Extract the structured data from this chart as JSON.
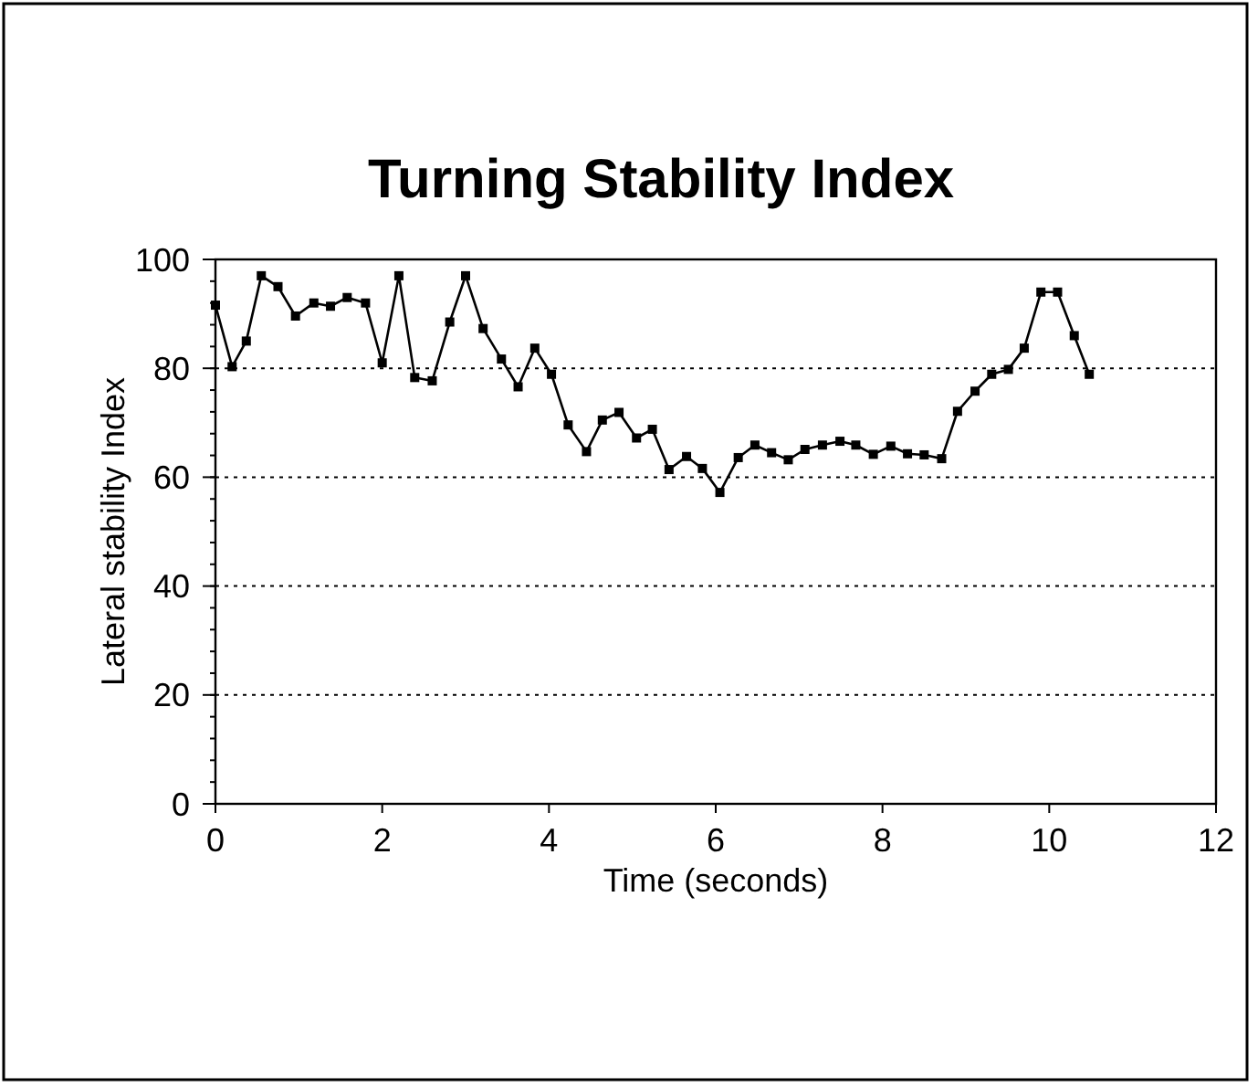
{
  "chart_data": {
    "type": "line",
    "title": "Turning Stability Index",
    "xlabel": "Time  (seconds)",
    "ylabel": "Lateral stability Index",
    "x": [
      0,
      0.2,
      0.37,
      0.55,
      0.75,
      0.96,
      1.18,
      1.38,
      1.58,
      1.8,
      2.0,
      2.2,
      2.39,
      2.6,
      2.81,
      3.0,
      3.21,
      3.43,
      3.63,
      3.83,
      4.03,
      4.23,
      4.45,
      4.64,
      4.84,
      5.05,
      5.24,
      5.44,
      5.65,
      5.84,
      6.05,
      6.27,
      6.47,
      6.67,
      6.87,
      7.07,
      7.28,
      7.49,
      7.68,
      7.89,
      8.1,
      8.3,
      8.5,
      8.71,
      8.9,
      9.11,
      9.31,
      9.51,
      9.7,
      9.9,
      10.1,
      10.3,
      10.48
    ],
    "series": [
      {
        "color": "#000000",
        "values": [
          91.6,
          80.3,
          85,
          97,
          95,
          89.6,
          92,
          91.4,
          93,
          92,
          81,
          97,
          78.3,
          77.7,
          88.5,
          97,
          87.3,
          81.7,
          76.6,
          83.7,
          78.9,
          69.6,
          64.7,
          70.5,
          71.9,
          67.2,
          68.8,
          61.4,
          63.8,
          61.6,
          57.2,
          63.6,
          65.9,
          64.5,
          63.2,
          65.1,
          65.9,
          66.6,
          65.9,
          64.2,
          65.7,
          64.3,
          64.1,
          63.4,
          72.1,
          75.8,
          78.9,
          79.8,
          83.7,
          94,
          94,
          86,
          78.9
        ]
      }
    ],
    "xlim": [
      0,
      12
    ],
    "xticks": [
      0,
      2,
      4,
      6,
      8,
      10,
      12
    ],
    "ylim": [
      0,
      100
    ],
    "yticks": [
      0,
      20,
      40,
      60,
      80,
      100
    ],
    "grid": "y",
    "marker": "square",
    "line_style": "solid"
  }
}
